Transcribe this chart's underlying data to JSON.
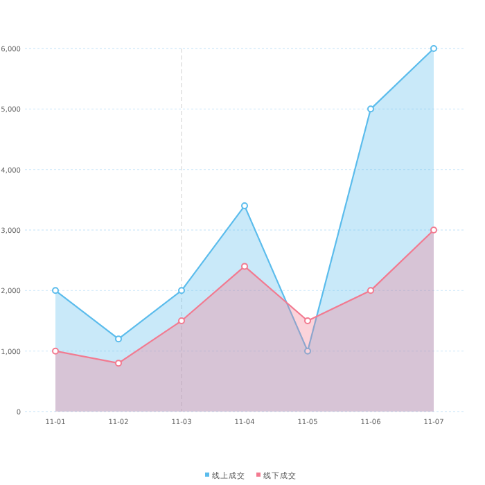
{
  "chart_data": {
    "type": "area",
    "categories": [
      "11-01",
      "11-02",
      "11-03",
      "11-04",
      "11-05",
      "11-06",
      "11-07"
    ],
    "series": [
      {
        "name": "线上成交",
        "color": "#5bbcec",
        "values": [
          2000,
          1200,
          2000,
          3400,
          1000,
          5000,
          6000
        ]
      },
      {
        "name": "线下成交",
        "color": "#f27a90",
        "values": [
          1000,
          800,
          1500,
          2400,
          1500,
          2000,
          3000
        ]
      }
    ],
    "ylim": [
      0,
      6000
    ],
    "yticks": [
      0,
      {
        "value": 1000,
        "label": "1,000"
      },
      {
        "value": 2000,
        "label": "2,000"
      },
      {
        "value": 3000,
        "label": "3,000"
      },
      {
        "value": 4000,
        "label": "4,000"
      },
      {
        "value": 5000,
        "label": "5,000"
      },
      {
        "value": 6000,
        "label": "6,000"
      }
    ],
    "ref_lines": [
      {
        "axis": "x",
        "value": "11-03",
        "color": "#dddddd",
        "line_style": "dashed"
      }
    ],
    "grid": "y",
    "legend": "bottom",
    "marker": "circle",
    "line_style": "solid"
  }
}
